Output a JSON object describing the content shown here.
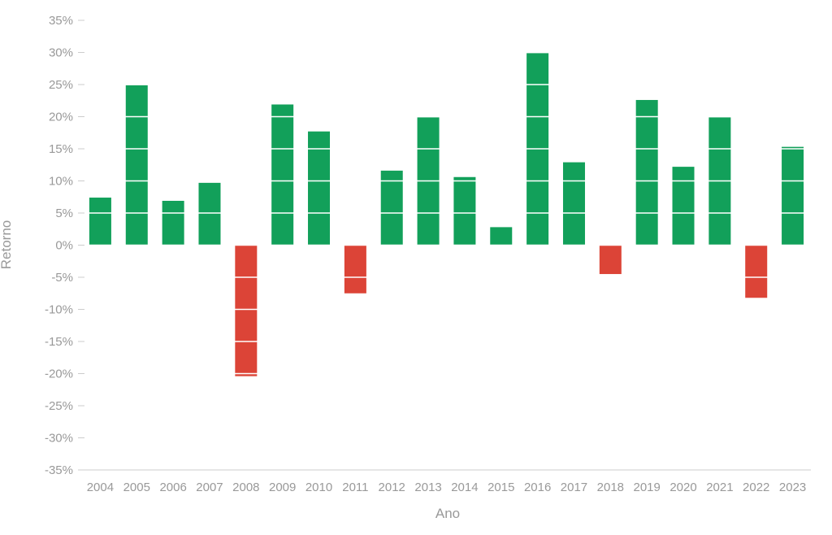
{
  "chart_data": {
    "type": "bar",
    "xlabel": "Ano",
    "ylabel": "Retorno",
    "ylim": [
      -35,
      35
    ],
    "y_ticks": [
      35,
      30,
      25,
      20,
      15,
      10,
      5,
      0,
      -5,
      -10,
      -15,
      -20,
      -25,
      -30,
      -35
    ],
    "y_tick_labels": [
      "35%",
      "30%",
      "25%",
      "20%",
      "15%",
      "10%",
      "5%",
      "0%",
      "-5%",
      "-10%",
      "-15%",
      "-20%",
      "-25%",
      "-30%",
      "-35%"
    ],
    "categories": [
      "2004",
      "2005",
      "2006",
      "2007",
      "2008",
      "2009",
      "2010",
      "2011",
      "2012",
      "2013",
      "2014",
      "2015",
      "2016",
      "2017",
      "2018",
      "2019",
      "2020",
      "2021",
      "2022",
      "2023"
    ],
    "values": [
      7.4,
      24.9,
      6.9,
      9.7,
      -20.4,
      21.9,
      17.7,
      -7.5,
      11.6,
      19.9,
      10.6,
      2.8,
      29.9,
      12.9,
      -4.5,
      22.6,
      12.2,
      19.9,
      -8.2,
      15.3
    ],
    "grid": "horizontal (drawn over bars)",
    "legend": "none",
    "colors": {
      "positive": "#12a05a",
      "negative": "#dc4437",
      "axis_text": "#999999",
      "tick_mark": "#cccccc",
      "gridline": "#ffffff"
    }
  }
}
